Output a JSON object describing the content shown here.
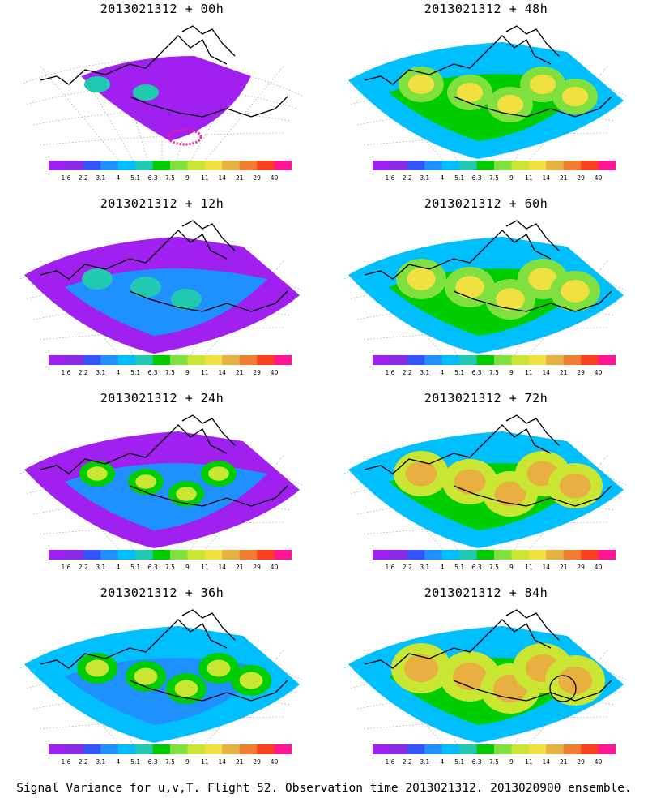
{
  "panels": [
    {
      "title": "2013021312 + 00h",
      "spread": 0
    },
    {
      "title": "2013021312 + 48h",
      "spread": 4
    },
    {
      "title": "2013021312 + 12h",
      "spread": 1
    },
    {
      "title": "2013021312 + 60h",
      "spread": 5
    },
    {
      "title": "2013021312 + 24h",
      "spread": 2
    },
    {
      "title": "2013021312 + 72h",
      "spread": 6
    },
    {
      "title": "2013021312 + 36h",
      "spread": 3
    },
    {
      "title": "2013021312 + 84h",
      "spread": 7
    }
  ],
  "colorbar": {
    "colors": [
      "#a020f0",
      "#8a2be2",
      "#3355ff",
      "#1e90ff",
      "#00bfff",
      "#20c9b0",
      "#00cd00",
      "#7fe040",
      "#c8e632",
      "#f0e040",
      "#e8b040",
      "#ee7d30",
      "#ff4020",
      "#ff1493"
    ],
    "labels": [
      "1.6",
      "2.2",
      "3.1",
      "4",
      "5.1",
      "6.3",
      "7.5",
      "9",
      "11",
      "14",
      "21",
      "29",
      "40"
    ]
  },
  "flight_track_color": "#ff1493",
  "footer": "Signal Variance for u,v,T. Flight 52. Observation time 2013021312. 2013020900 ensemble."
}
